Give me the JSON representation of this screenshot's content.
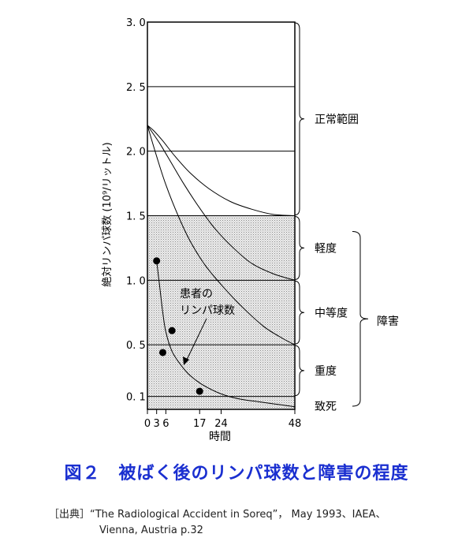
{
  "chart_data": {
    "type": "line",
    "ylabel": "絶対リンパ球数 (10⁹/リットル)",
    "xlabel": "時間",
    "xlim": [
      0,
      48
    ],
    "ylim": [
      0,
      3.0
    ],
    "x_ticks": [
      0,
      3,
      6,
      17,
      24,
      48
    ],
    "x_tick_labels": [
      "0",
      "3",
      "6",
      "17",
      "24",
      "48"
    ],
    "y_ticks": [
      0.1,
      0.5,
      1.0,
      1.5,
      2.0,
      2.5,
      3.0
    ],
    "y_tick_labels": [
      "0. 1",
      "0. 5",
      "1. 0",
      "1. 5",
      "2. 0",
      "2. 5",
      "3. 0"
    ],
    "grid": "horizontal",
    "shaded_region": {
      "y_from": 0,
      "y_to": 1.5
    },
    "series": [
      {
        "x": [
          0,
          2,
          5,
          9,
          14,
          20,
          27,
          34,
          41,
          48
        ],
        "values": [
          2.2,
          2.16,
          2.08,
          1.96,
          1.83,
          1.71,
          1.61,
          1.55,
          1.51,
          1.5
        ]
      },
      {
        "x": [
          0,
          4,
          8,
          12,
          17,
          22,
          28,
          34,
          41,
          48
        ],
        "values": [
          2.2,
          2.06,
          1.9,
          1.74,
          1.56,
          1.4,
          1.25,
          1.13,
          1.05,
          1.0
        ]
      },
      {
        "x": [
          0,
          3,
          6,
          10,
          14,
          19,
          25,
          31,
          38,
          44,
          48
        ],
        "values": [
          2.2,
          1.96,
          1.74,
          1.5,
          1.3,
          1.11,
          0.94,
          0.79,
          0.64,
          0.55,
          0.5
        ]
      },
      {
        "x": [
          3,
          4,
          5,
          6,
          8,
          11,
          14,
          18,
          24,
          30,
          36,
          42,
          48
        ],
        "values": [
          1.15,
          0.95,
          0.75,
          0.6,
          0.45,
          0.34,
          0.26,
          0.19,
          0.12,
          0.08,
          0.06,
          0.04,
          0.02
        ]
      }
    ],
    "points": {
      "x": [
        3,
        5,
        8,
        17
      ],
      "values": [
        1.15,
        0.44,
        0.61,
        0.14
      ]
    },
    "annotations": [
      {
        "text": "患者の",
        "line2": "リンパ球数"
      }
    ],
    "ranges": [
      {
        "label": "正常範囲",
        "from": 1.5,
        "to": 3.0
      },
      {
        "label": "軽度",
        "from": 1.0,
        "to": 1.5
      },
      {
        "label": "中等度",
        "from": 0.5,
        "to": 1.0
      },
      {
        "label": "重度",
        "from": 0.1,
        "to": 0.5
      },
      {
        "label": "致死",
        "from": 0,
        "to": 0.1
      }
    ],
    "group_label": "障害"
  },
  "caption": "図２　被ばく後のリンパ球数と障害の程度",
  "source": {
    "line1": "［出典］“The Radiological Accident in Soreq”， May 1993、IAEA、",
    "line2": "Vienna, Austria p.32"
  }
}
